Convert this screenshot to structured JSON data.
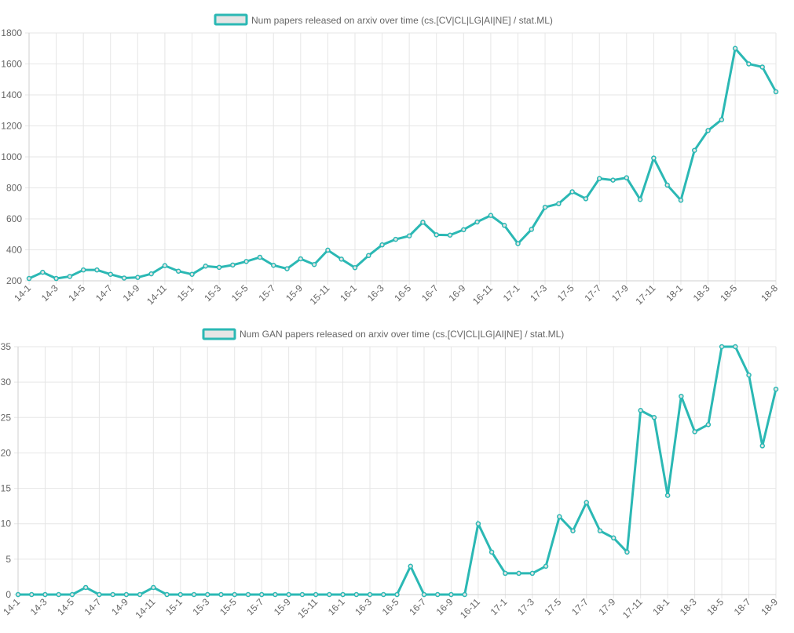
{
  "colors": {
    "line": "#2bb8b4",
    "legend_fill": "#e5e5e5",
    "grid": "#e6e6e6",
    "text": "#666666"
  },
  "chart_data": [
    {
      "type": "line",
      "legend": "Num papers released on arxiv over time (cs.[CV|CL|LG|AI|NE] / stat.ML)",
      "categories": [
        "14-1",
        "14-2",
        "14-3",
        "14-4",
        "14-5",
        "14-6",
        "14-7",
        "14-8",
        "14-9",
        "14-10",
        "14-11",
        "14-12",
        "15-1",
        "15-2",
        "15-3",
        "15-4",
        "15-5",
        "15-6",
        "15-7",
        "15-8",
        "15-9",
        "15-10",
        "15-11",
        "15-12",
        "16-1",
        "16-2",
        "16-3",
        "16-4",
        "16-5",
        "16-6",
        "16-7",
        "16-8",
        "16-9",
        "16-10",
        "16-11",
        "16-12",
        "17-1",
        "17-2",
        "17-3",
        "17-4",
        "17-5",
        "17-6",
        "17-7",
        "17-8",
        "17-9",
        "17-10",
        "17-11",
        "17-12",
        "18-1",
        "18-2",
        "18-3",
        "18-4",
        "18-5",
        "18-6",
        "18-7",
        "18-8"
      ],
      "tick_labels": [
        "14-1",
        "14-3",
        "14-5",
        "14-7",
        "14-9",
        "14-11",
        "15-1",
        "15-3",
        "15-5",
        "15-7",
        "15-9",
        "15-11",
        "16-1",
        "16-3",
        "16-5",
        "16-7",
        "16-9",
        "16-11",
        "17-1",
        "17-3",
        "17-5",
        "17-7",
        "17-9",
        "17-11",
        "18-1",
        "18-3",
        "18-5",
        "18-8"
      ],
      "values": [
        215,
        255,
        215,
        228,
        270,
        270,
        242,
        218,
        222,
        245,
        298,
        262,
        242,
        295,
        287,
        302,
        325,
        352,
        300,
        278,
        342,
        305,
        398,
        340,
        285,
        363,
        432,
        468,
        490,
        578,
        497,
        495,
        530,
        580,
        622,
        558,
        440,
        532,
        675,
        698,
        775,
        730,
        860,
        850,
        865,
        725,
        992,
        818,
        720,
        1042,
        1170,
        1240,
        1700,
        1600,
        1580,
        1420
      ],
      "ylim": [
        200,
        1800
      ],
      "yticks": [
        "200",
        "400",
        "600",
        "800",
        "1000",
        "1200",
        "1400",
        "1600",
        "1800"
      ],
      "grid": true,
      "legend_position": "top-center"
    },
    {
      "type": "line",
      "legend": "Num GAN papers released on arxiv over time (cs.[CV|CL|LG|AI|NE] / stat.ML)",
      "categories": [
        "14-1",
        "14-2",
        "14-3",
        "14-4",
        "14-5",
        "14-6",
        "14-7",
        "14-8",
        "14-9",
        "14-10",
        "14-11",
        "14-12",
        "15-1",
        "15-2",
        "15-3",
        "15-4",
        "15-5",
        "15-6",
        "15-7",
        "15-8",
        "15-9",
        "15-10",
        "15-11",
        "15-12",
        "16-1",
        "16-2",
        "16-3",
        "16-4",
        "16-5",
        "16-6",
        "16-7",
        "16-8",
        "16-9",
        "16-10",
        "16-11",
        "16-12",
        "17-1",
        "17-2",
        "17-3",
        "17-4",
        "17-5",
        "17-6",
        "17-7",
        "17-8",
        "17-9",
        "17-10",
        "17-11",
        "17-12",
        "18-1",
        "18-2",
        "18-3",
        "18-4",
        "18-5",
        "18-6",
        "18-7",
        "18-8",
        "18-9"
      ],
      "tick_labels": [
        "14-1",
        "14-3",
        "14-5",
        "14-7",
        "14-9",
        "14-11",
        "15-1",
        "15-3",
        "15-5",
        "15-7",
        "15-9",
        "15-11",
        "16-1",
        "16-3",
        "16-5",
        "16-7",
        "16-9",
        "16-11",
        "17-1",
        "17-3",
        "17-5",
        "17-7",
        "17-9",
        "17-11",
        "18-1",
        "18-3",
        "18-5",
        "18-7",
        "18-9"
      ],
      "values": [
        0,
        0,
        0,
        0,
        0,
        1,
        0,
        0,
        0,
        0,
        1,
        0,
        0,
        0,
        0,
        0,
        0,
        0,
        0,
        0,
        0,
        0,
        0,
        0,
        0,
        0,
        0,
        0,
        0,
        4,
        0,
        0,
        0,
        0,
        10,
        6,
        3,
        3,
        3,
        4,
        11,
        9,
        13,
        9,
        8,
        6,
        26,
        25,
        14,
        28,
        23,
        24,
        35,
        35,
        31,
        21,
        29
      ],
      "ylim": [
        0,
        35
      ],
      "yticks": [
        "0",
        "5",
        "10",
        "15",
        "20",
        "25",
        "30",
        "35"
      ],
      "grid": true,
      "legend_position": "top-center"
    }
  ]
}
